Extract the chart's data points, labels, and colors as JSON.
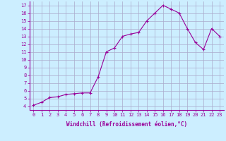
{
  "x": [
    0,
    1,
    2,
    3,
    4,
    5,
    6,
    7,
    8,
    9,
    10,
    11,
    12,
    13,
    14,
    15,
    16,
    17,
    18,
    19,
    20,
    21,
    22,
    23
  ],
  "y": [
    4.1,
    4.5,
    5.1,
    5.2,
    5.5,
    5.6,
    5.7,
    5.7,
    7.8,
    11.0,
    11.5,
    13.0,
    13.3,
    13.5,
    15.0,
    16.0,
    17.0,
    16.5,
    16.0,
    14.0,
    12.2,
    11.3,
    14.0,
    13.0
  ],
  "line_color": "#990099",
  "marker": "+",
  "marker_size": 3,
  "bg_color": "#cceeff",
  "grid_color": "#aaaacc",
  "xlabel": "Windchill (Refroidissement éolien,°C)",
  "ylabel": "",
  "title": "",
  "ylim": [
    3.5,
    17.5
  ],
  "xlim": [
    -0.5,
    23.5
  ],
  "yticks": [
    4,
    5,
    6,
    7,
    8,
    9,
    10,
    11,
    12,
    13,
    14,
    15,
    16,
    17
  ],
  "xticks": [
    0,
    1,
    2,
    3,
    4,
    5,
    6,
    7,
    8,
    9,
    10,
    11,
    12,
    13,
    14,
    15,
    16,
    17,
    18,
    19,
    20,
    21,
    22,
    23
  ],
  "tick_fontsize": 5.0,
  "xlabel_fontsize": 5.5
}
